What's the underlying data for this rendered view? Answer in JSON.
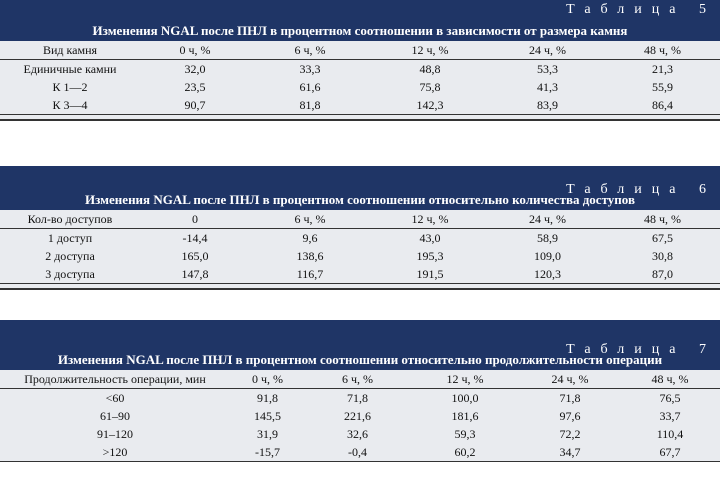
{
  "tables": [
    {
      "number_label": "Таблица 5",
      "title": "Изменения NGAL после ПНЛ в процентном соотношении в зависимости от размера камня",
      "headers": [
        "Вид камня",
        "0 ч, %",
        "6 ч, %",
        "12 ч, %",
        "24 ч, %",
        "48 ч, %"
      ],
      "rows": [
        [
          "Единичные камни",
          "32,0",
          "33,3",
          "48,8",
          "53,3",
          "21,3"
        ],
        [
          "К 1—2",
          "23,5",
          "61,6",
          "75,8",
          "41,3",
          "55,9"
        ],
        [
          "К 3—4",
          "90,7",
          "81,8",
          "142,3",
          "83,9",
          "86,4"
        ]
      ]
    },
    {
      "number_label": "Таблица 6",
      "title": "Изменения NGAL после ПНЛ в процентном соотношении относительно количества доступов",
      "headers": [
        "Кол-во доступов",
        "0",
        "6 ч, %",
        "12 ч, %",
        "24 ч, %",
        "48 ч, %"
      ],
      "rows": [
        [
          "1 доступ",
          "-14,4",
          "9,6",
          "43,0",
          "58,9",
          "67,5"
        ],
        [
          "2 доступа",
          "165,0",
          "138,6",
          "195,3",
          "109,0",
          "30,8"
        ],
        [
          "3 доступа",
          "147,8",
          "116,7",
          "191,5",
          "120,3",
          "87,0"
        ]
      ]
    },
    {
      "number_label": "Таблица 7",
      "title": "Изменения NGAL после ПНЛ в процентном соотношении относительно продолжительности операции",
      "headers": [
        "Продолжительность операции, мин",
        "0 ч, %",
        "6 ч, %",
        "12 ч, %",
        "24 ч, %",
        "48 ч, %"
      ],
      "rows": [
        [
          "<60",
          "91,8",
          "71,8",
          "100,0",
          "71,8",
          "76,5"
        ],
        [
          "61–90",
          "145,5",
          "221,6",
          "181,6",
          "97,6",
          "33,7"
        ],
        [
          "91–120",
          "31,9",
          "32,6",
          "59,3",
          "72,2",
          "110,4"
        ],
        [
          ">120",
          "-15,7",
          "-0,4",
          "60,2",
          "34,7",
          "67,7"
        ]
      ]
    }
  ]
}
